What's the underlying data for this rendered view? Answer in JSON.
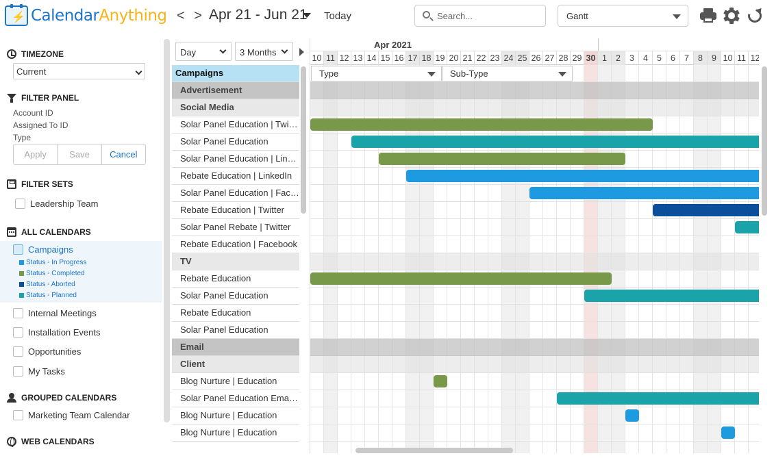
{
  "header": {
    "logo_part1": "Calendar",
    "logo_part2": "Anything",
    "nav_arrows": "< >",
    "date_range": "Apr 21 - Jun 21",
    "today_label": "Today",
    "search_placeholder": "Search...",
    "view_selected": "Gantt"
  },
  "sidebar": {
    "timezone_title": "TIMEZONE",
    "timezone_value": "Current",
    "filter_panel_title": "FILTER PANEL",
    "filter_fields": [
      "Account ID",
      "Assigned To ID",
      "Type"
    ],
    "apply_label": "Apply",
    "save_label": "Save",
    "cancel_label": "Cancel",
    "filter_sets_title": "FILTER SETS",
    "filter_sets": [
      "Leadership Team"
    ],
    "all_calendars_title": "ALL CALENDARS",
    "campaigns_label": "Campaigns",
    "statuses": [
      {
        "label": "Status - In Progress",
        "color": "#1e9ae0"
      },
      {
        "label": "Status - Completed",
        "color": "#78994a"
      },
      {
        "label": "Status - Aborted",
        "color": "#0b4f9a"
      },
      {
        "label": "Status - Planned",
        "color": "#1aa3a8"
      }
    ],
    "calendars": [
      "Internal Meetings",
      "Installation Events",
      "Opportunities",
      "My Tasks"
    ],
    "grouped_title": "GROUPED CALENDARS",
    "grouped": [
      "Marketing Team Calendar"
    ],
    "web_title": "WEB CALENDARS"
  },
  "gantt": {
    "scale_value": "Day",
    "range_value": "3 Months",
    "month_label": "Apr 2021",
    "type_filter": "Type",
    "subtype_filter": "Sub-Type",
    "days": [
      "10",
      "11",
      "12",
      "13",
      "14",
      "15",
      "16",
      "17",
      "18",
      "19",
      "20",
      "21",
      "22",
      "23",
      "24",
      "25",
      "26",
      "27",
      "28",
      "29",
      "30",
      "1",
      "2",
      "3",
      "4",
      "5",
      "6",
      "7",
      "8",
      "9",
      "10",
      "11",
      "12"
    ],
    "weekend_indexes": [
      1,
      7,
      8,
      14,
      15,
      21,
      22,
      28,
      29
    ],
    "today_index": 20,
    "rows": [
      {
        "kind": "campaigns",
        "label": "Campaigns"
      },
      {
        "kind": "type",
        "label": "Advertisement"
      },
      {
        "kind": "sub",
        "label": "Social Media"
      },
      {
        "kind": "item",
        "label": "Solar Panel Education | Twitter",
        "start": 0,
        "end": 25,
        "status": "completed"
      },
      {
        "kind": "item",
        "label": "Solar Panel Education",
        "start": 3,
        "end": 33,
        "status": "planned"
      },
      {
        "kind": "item",
        "label": "Solar Panel Education | LinkedIn",
        "start": 5,
        "end": 23,
        "status": "completed"
      },
      {
        "kind": "item",
        "label": "Rebate Education | LinkedIn",
        "start": 7,
        "end": 33,
        "status": "in_progress"
      },
      {
        "kind": "item",
        "label": "Solar Panel Education | Facebook",
        "start": 16,
        "end": 33,
        "status": "in_progress"
      },
      {
        "kind": "item",
        "label": "Rebate Education | Twitter",
        "start": 25,
        "end": 33,
        "status": "aborted"
      },
      {
        "kind": "item",
        "label": "Solar Panel Rebate | Twitter",
        "start": 31,
        "end": 33,
        "status": "planned"
      },
      {
        "kind": "item",
        "label": "Rebate Education | Facebook"
      },
      {
        "kind": "sub",
        "label": "TV"
      },
      {
        "kind": "item",
        "label": "Rebate Education",
        "start": 0,
        "end": 22,
        "status": "completed"
      },
      {
        "kind": "item",
        "label": "Solar Panel Education",
        "start": 20,
        "end": 33,
        "status": "planned"
      },
      {
        "kind": "item",
        "label": "Rebate Education"
      },
      {
        "kind": "item",
        "label": "Solar Panel Education"
      },
      {
        "kind": "type",
        "label": "Email"
      },
      {
        "kind": "sub",
        "label": "Client"
      },
      {
        "kind": "item",
        "label": "Blog Nurture | Education",
        "start": 9,
        "end": 10,
        "status": "completed"
      },
      {
        "kind": "item",
        "label": "Solar Panel Education Email Nurture",
        "start": 18,
        "end": 33,
        "status": "planned"
      },
      {
        "kind": "item",
        "label": "Blog Nurture | Education",
        "start": 23,
        "end": 24,
        "status": "in_progress"
      },
      {
        "kind": "item",
        "label": "Blog Nurture | Education",
        "start": 30,
        "end": 31,
        "status": "in_progress"
      }
    ],
    "status_colors": {
      "in_progress": "#1e9ae0",
      "completed": "#78994a",
      "aborted": "#0b4f9a",
      "planned": "#1aa3a8"
    }
  }
}
